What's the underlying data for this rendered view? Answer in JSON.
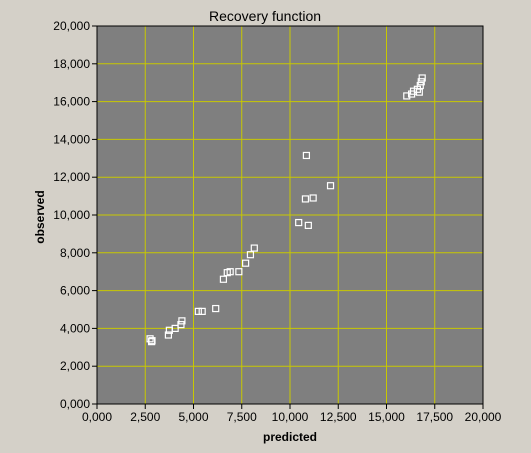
{
  "chart_data": {
    "type": "scatter",
    "title": "Recovery function",
    "xlabel": "predicted",
    "ylabel": "observed",
    "xlim": [
      0,
      20000
    ],
    "ylim": [
      0,
      20000
    ],
    "x_ticks": [
      "0,000",
      "2,500",
      "5,000",
      "7,500",
      "10,000",
      "12,500",
      "15,000",
      "17,500",
      "20,000"
    ],
    "y_ticks": [
      "0,000",
      "2,000",
      "4,000",
      "6,000",
      "8,000",
      "10,000",
      "12,000",
      "14,000",
      "16,000",
      "18,000",
      "20,000"
    ],
    "grid": true,
    "colors": {
      "plot_bg": "#7f7f7f",
      "grid": "#c8c800",
      "marker": "#ffffff",
      "frame_bg": "#d4d0c8"
    },
    "series": [
      {
        "x": [
          2750,
          2850,
          2830,
          3700,
          3750,
          4050,
          4350,
          4400,
          5250,
          5450,
          6150,
          6550,
          6750,
          6900,
          7350,
          7700,
          7950,
          8150,
          10450,
          10800,
          10850,
          10950,
          11200,
          12100,
          16050,
          16300,
          16400,
          16600,
          16700,
          16750,
          16800,
          16850
        ],
        "y": [
          3450,
          3350,
          3300,
          3650,
          3900,
          4000,
          4200,
          4400,
          4900,
          4900,
          5050,
          6600,
          6950,
          7000,
          7000,
          7450,
          7900,
          8250,
          9600,
          10850,
          13150,
          9450,
          10900,
          11550,
          16300,
          16400,
          16550,
          16650,
          16500,
          16850,
          17050,
          17250
        ]
      }
    ]
  }
}
